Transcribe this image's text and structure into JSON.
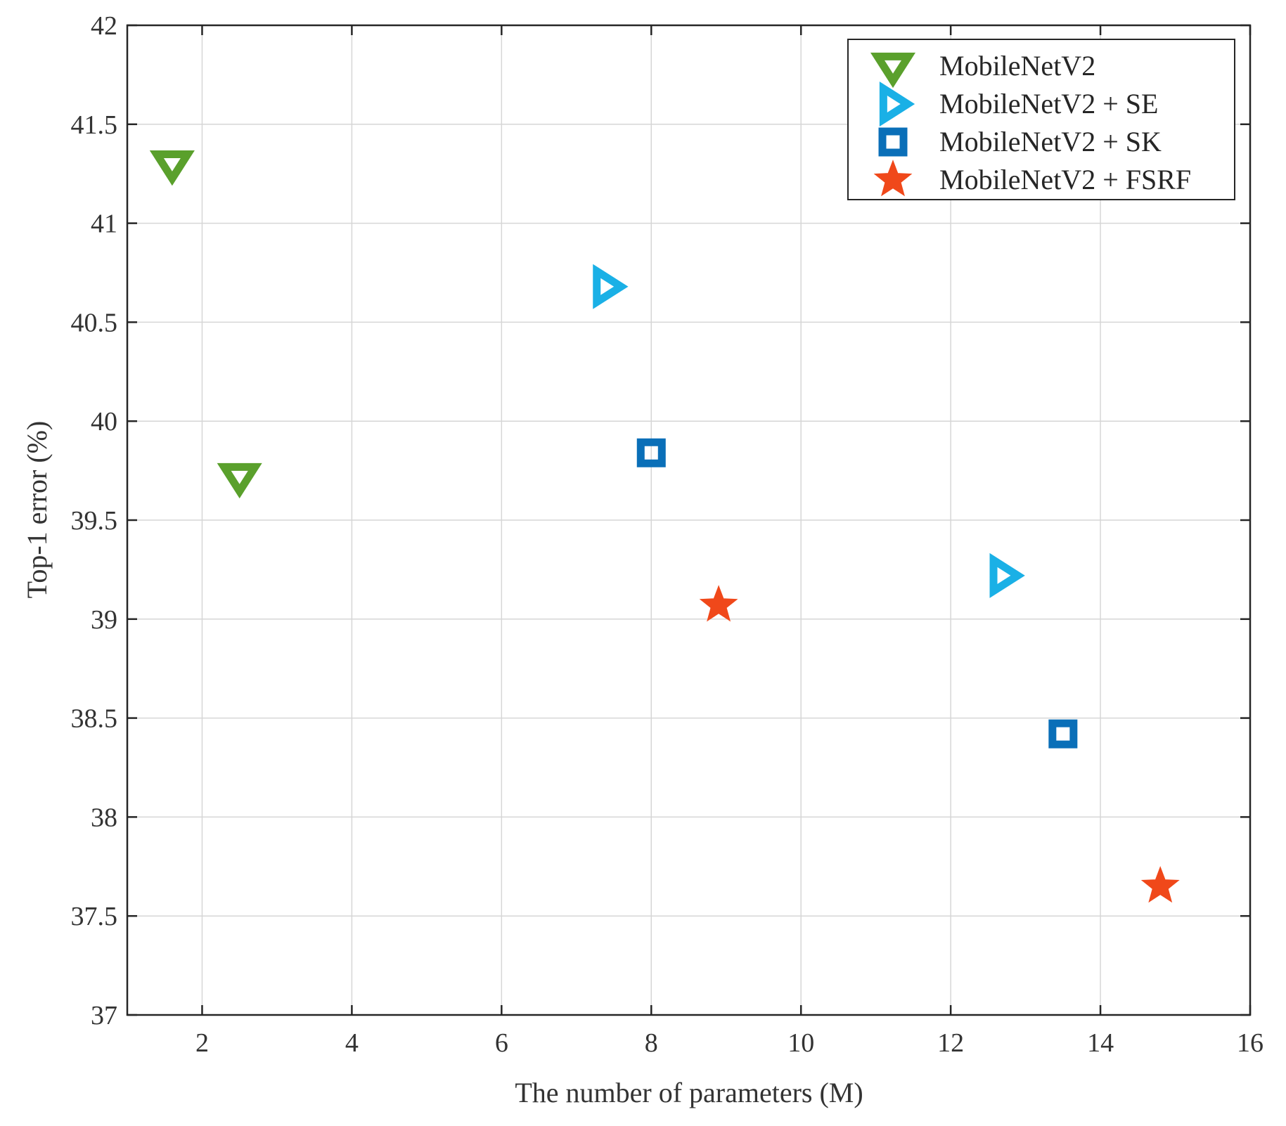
{
  "chart_data": {
    "type": "scatter",
    "title": "",
    "xlabel": "The number of parameters (M)",
    "ylabel": "Top-1 error (%)",
    "xlim": [
      1,
      16
    ],
    "ylim": [
      37,
      42
    ],
    "xticks": [
      2,
      4,
      6,
      8,
      10,
      12,
      14,
      16
    ],
    "yticks": [
      37,
      37.5,
      38,
      38.5,
      39,
      39.5,
      40,
      40.5,
      41,
      41.5,
      42
    ],
    "xtick_labels": [
      "2",
      "4",
      "6",
      "8",
      "10",
      "12",
      "14",
      "16"
    ],
    "ytick_labels": [
      "37",
      "37.5",
      "38",
      "38.5",
      "39",
      "39.5",
      "40",
      "40.5",
      "41",
      "41.5",
      "42"
    ],
    "grid": true,
    "legend_position": "top-right",
    "series": [
      {
        "name": "MobileNetV2",
        "marker": "triangle-down",
        "color": "#5aa02c",
        "points": [
          {
            "x": 1.6,
            "y": 41.3
          },
          {
            "x": 2.5,
            "y": 39.72
          }
        ]
      },
      {
        "name": "MobileNetV2 + SE",
        "marker": "triangle-right",
        "color": "#1ab0e6",
        "points": [
          {
            "x": 7.4,
            "y": 40.68
          },
          {
            "x": 12.7,
            "y": 39.22
          }
        ]
      },
      {
        "name": "MobileNetV2 + SK",
        "marker": "square",
        "color": "#0a6fb8",
        "points": [
          {
            "x": 8.0,
            "y": 39.84
          },
          {
            "x": 13.5,
            "y": 38.42
          }
        ]
      },
      {
        "name": "MobileNetV2 + FSRF",
        "marker": "star",
        "color": "#f0481a",
        "points": [
          {
            "x": 8.9,
            "y": 39.07
          },
          {
            "x": 14.8,
            "y": 37.65
          }
        ]
      }
    ]
  }
}
